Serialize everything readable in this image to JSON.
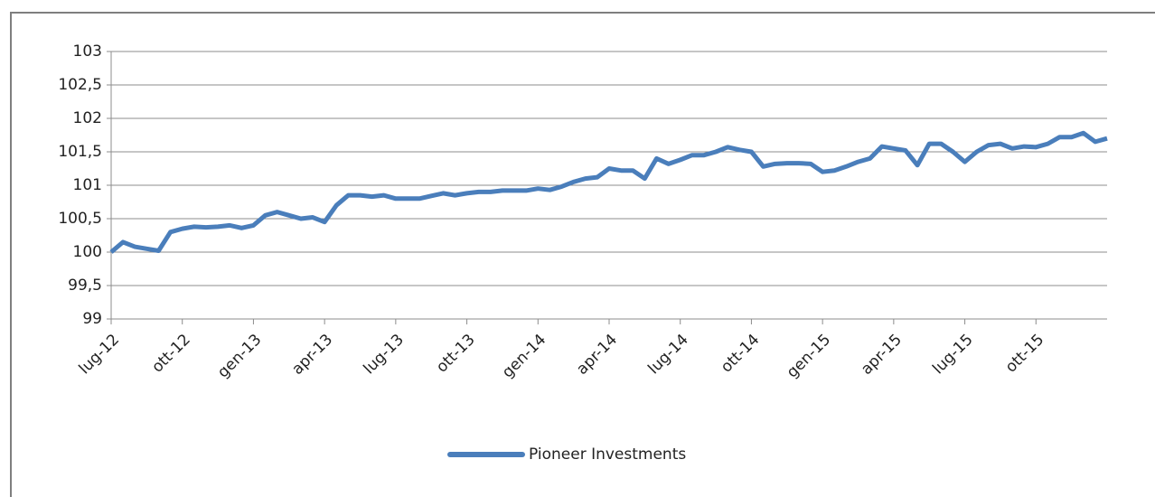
{
  "chart_data": {
    "type": "line",
    "categories": [
      "lug-12",
      null,
      null,
      null,
      null,
      null,
      "ott-12",
      null,
      null,
      null,
      null,
      null,
      "gen-13",
      null,
      null,
      null,
      null,
      null,
      "apr-13",
      null,
      null,
      null,
      null,
      null,
      "lug-13",
      null,
      null,
      null,
      null,
      null,
      "ott-13",
      null,
      null,
      null,
      null,
      null,
      "gen-14",
      null,
      null,
      null,
      null,
      null,
      "apr-14",
      null,
      null,
      null,
      null,
      null,
      "lug-14",
      null,
      null,
      null,
      null,
      null,
      "ott-14",
      null,
      null,
      null,
      null,
      null,
      "gen-15",
      null,
      null,
      null,
      null,
      null,
      "apr-15",
      null,
      null,
      null,
      null,
      null,
      "lug-15",
      null,
      null,
      null,
      null,
      null,
      "ott-15",
      null,
      null,
      null,
      null,
      null,
      null
    ],
    "series": [
      {
        "name": "Pioneer Investments",
        "color": "#4a7ebb",
        "values": [
          100.0,
          100.15,
          100.08,
          100.05,
          100.02,
          100.3,
          100.35,
          100.38,
          100.37,
          100.38,
          100.4,
          100.36,
          100.4,
          100.55,
          100.6,
          100.55,
          100.5,
          100.52,
          100.45,
          100.7,
          100.85,
          100.85,
          100.83,
          100.85,
          100.8,
          100.8,
          100.8,
          100.84,
          100.88,
          100.85,
          100.88,
          100.9,
          100.9,
          100.92,
          100.92,
          100.92,
          100.95,
          100.93,
          100.98,
          101.05,
          101.1,
          101.12,
          101.25,
          101.22,
          101.22,
          101.1,
          101.4,
          101.32,
          101.38,
          101.45,
          101.45,
          101.5,
          101.57,
          101.53,
          101.5,
          101.28,
          101.32,
          101.33,
          101.33,
          101.32,
          101.2,
          101.22,
          101.28,
          101.35,
          101.4,
          101.58,
          101.55,
          101.52,
          101.3,
          101.62,
          101.62,
          101.5,
          101.35,
          101.5,
          101.6,
          101.62,
          101.55,
          101.58,
          101.57,
          101.62,
          101.72,
          101.72,
          101.78,
          101.65,
          101.7
        ]
      }
    ],
    "ylim": [
      99,
      103
    ],
    "yticks": [
      99,
      {
        "value": 99.5,
        "label": "99,5"
      },
      100,
      {
        "value": 100.5,
        "label": "100,5"
      },
      101,
      {
        "value": 101.5,
        "label": "101,5"
      },
      102,
      {
        "value": 102.5,
        "label": "102,5"
      },
      103
    ],
    "grid": true,
    "legend": "bottom"
  }
}
